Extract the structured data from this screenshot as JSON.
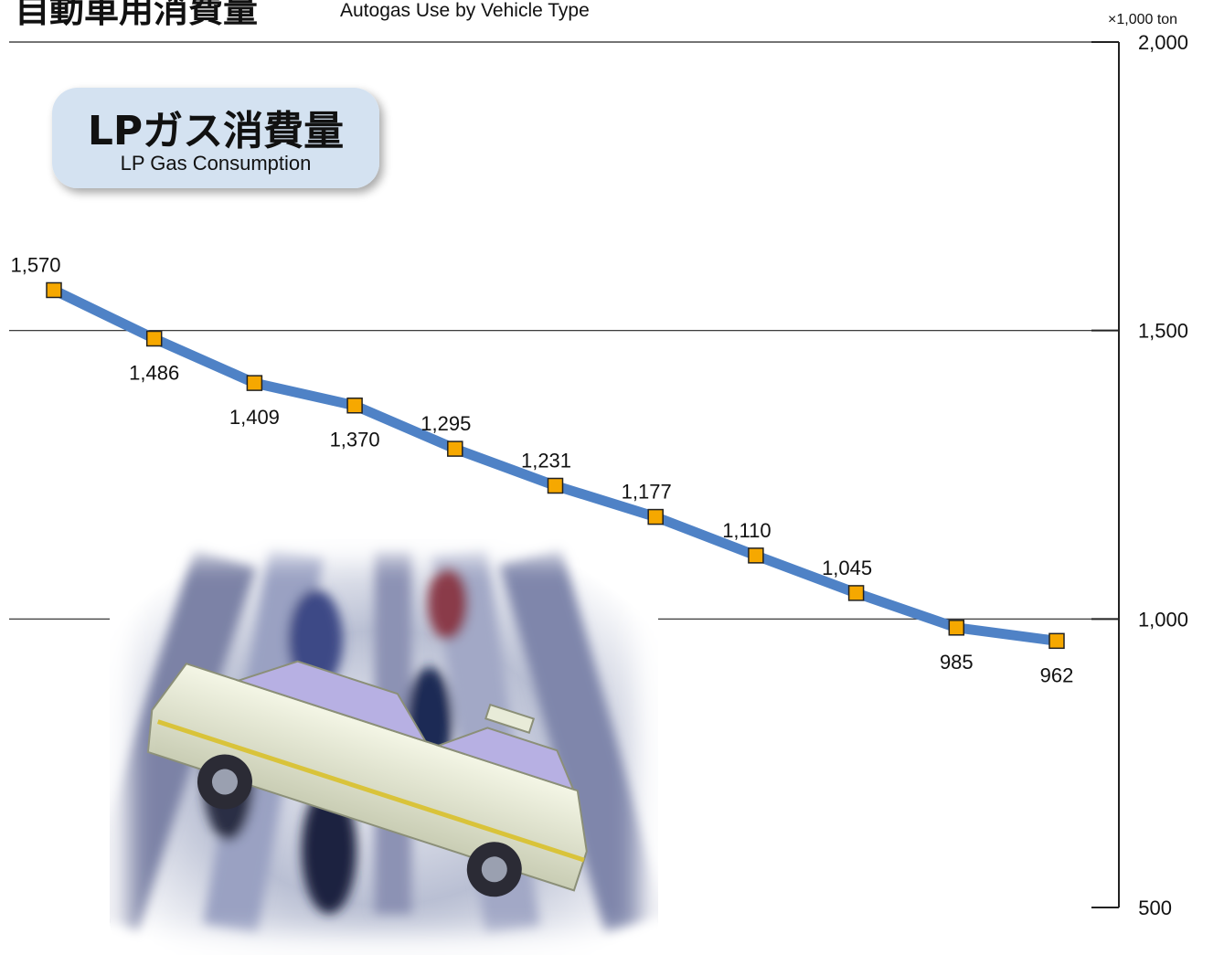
{
  "header": {
    "title_jp": "自動車用消費量",
    "title_en": "Autogas Use by Vehicle Type",
    "unit": "×1,000 ton"
  },
  "badge": {
    "title_jp": "LPガス消費量",
    "title_en": "LP Gas Consumption"
  },
  "photo": {
    "subject": "taxi-and-pedestrians-motion-blur-photo"
  },
  "colors": {
    "line": "#4f82c6",
    "marker_fill": "#f6a800",
    "marker_stroke": "#222222",
    "gridline": "#222222",
    "badge_fill": "#d4e2f1",
    "text": "#111111"
  },
  "chart_data": {
    "type": "line",
    "title": "",
    "xlabel": "",
    "ylabel": "×1,000 ton",
    "ylim": [
      500,
      2000
    ],
    "yticks": [
      500,
      1000,
      1500,
      2000
    ],
    "ytick_labels": [
      "500",
      "1,000",
      "1,500",
      "2,000"
    ],
    "grid": true,
    "y_axis_position": "right",
    "series": [
      {
        "values": [
          1570,
          1486,
          1409,
          1370,
          1295,
          1231,
          1177,
          1110,
          1045,
          985,
          962
        ],
        "labels": [
          "1,570",
          "1,486",
          "1,409",
          "1,370",
          "1,295",
          "1,231",
          "1,177",
          "1,110",
          "1,045",
          "985",
          "962"
        ],
        "label_position": [
          "above",
          "below",
          "below",
          "below",
          "above",
          "above",
          "above",
          "above",
          "above",
          "below",
          "below"
        ]
      }
    ]
  }
}
